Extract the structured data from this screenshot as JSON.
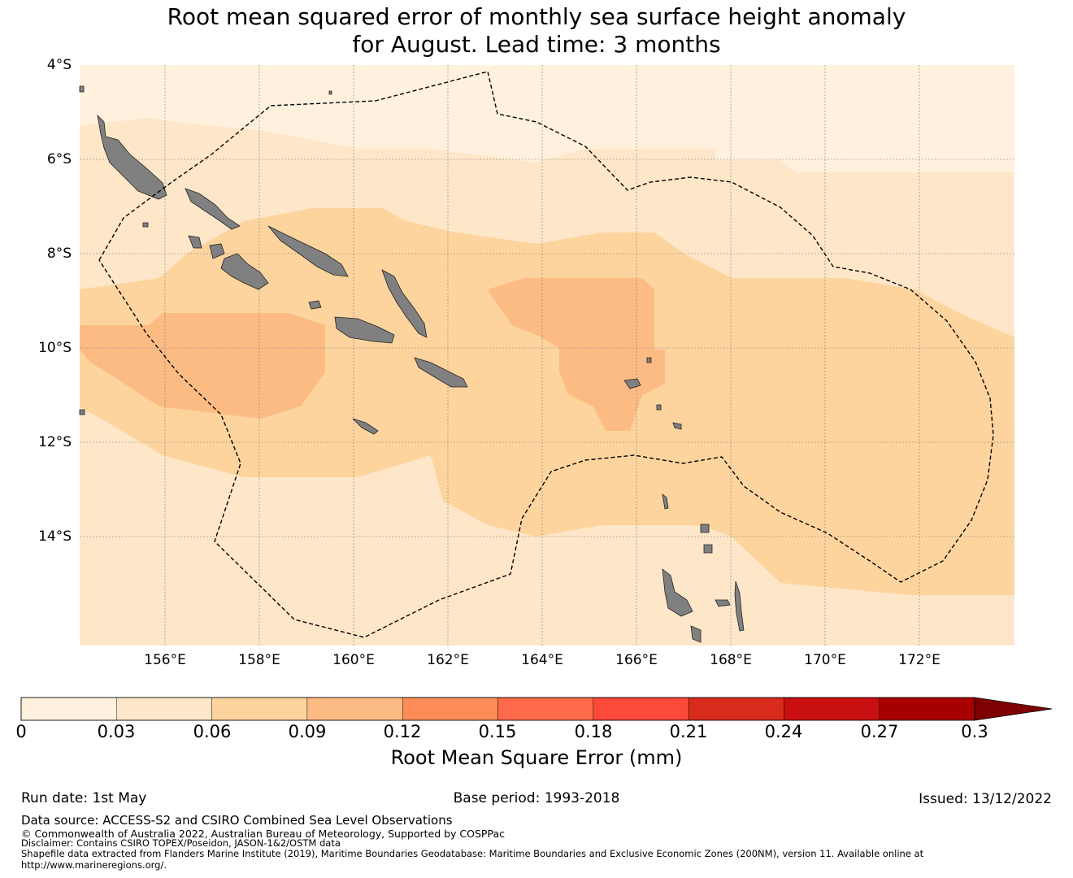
{
  "title": {
    "line1": "Root mean squared error of monthly sea surface height anomaly",
    "line2": "for August. Lead time: 3 months"
  },
  "map": {
    "lat_labels": [
      "4°S",
      "6°S",
      "8°S",
      "10°S",
      "12°S",
      "14°S"
    ],
    "lon_labels": [
      "156°E",
      "158°E",
      "160°E",
      "162°E",
      "164°E",
      "166°E",
      "168°E",
      "170°E",
      "172°E"
    ],
    "land_color": "#808080",
    "eez_line_style": "dashed"
  },
  "colorbar": {
    "tick_labels": [
      "0",
      "0.03",
      "0.06",
      "0.09",
      "0.12",
      "0.15",
      "0.18",
      "0.21",
      "0.24",
      "0.27",
      "0.3"
    ],
    "colors": [
      "#fff1de",
      "#fee6c8",
      "#fdd49e",
      "#fdbb84",
      "#fc8d59",
      "#ff6a4a",
      "#fb4a3a",
      "#d92b1c",
      "#c90f0f",
      "#a80000"
    ],
    "extend_color": "#7f0000",
    "label": "Root Mean Square Error (mm)"
  },
  "footer": {
    "run_date": "Run date: 1st May",
    "base_period": "Base period: 1993-2018",
    "issued": "Issued: 13/12/2022",
    "data_source": "Data source: ACCESS-S2 and CSIRO Combined Sea Level Observations",
    "copyright": "© Commonwealth of Australia 2022, Australian Bureau of Meteorology, Supported by COSPPac",
    "disclaimer": "Disclaimer: Contains CSIRO TOPEX/Poseidon, JASON-1&2/OSTM data",
    "shapefile": "Shapefile data extracted from Flanders Marine Institute (2019), Maritime Boundaries Geodatabase: Maritime Boundaries and Exclusive Economic Zones (200NM), version 11. Available online at",
    "url": "http://www.marineregions.org/."
  }
}
